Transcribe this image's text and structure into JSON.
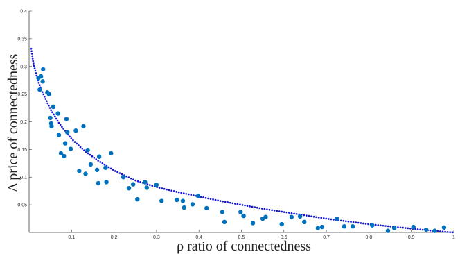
{
  "chart_data": {
    "type": "scatter",
    "xlabel": "ρ ratio of connectedness",
    "ylabel": "Δ price of connectedness",
    "xlim": [
      0,
      1
    ],
    "ylim": [
      0,
      0.4
    ],
    "xticks": [
      0.1,
      0.2,
      0.3,
      0.4,
      0.5,
      0.6,
      0.7,
      0.8,
      0.9,
      1
    ],
    "yticks": [
      0.05,
      0.1,
      0.15,
      0.2,
      0.25,
      0.3,
      0.35,
      0.4
    ],
    "grid": false,
    "series": [
      {
        "kind": "points",
        "color": "#0072bd",
        "points": [
          [
            0.022,
            0.279
          ],
          [
            0.025,
            0.258
          ],
          [
            0.028,
            0.282
          ],
          [
            0.032,
            0.273
          ],
          [
            0.033,
            0.295
          ],
          [
            0.043,
            0.253
          ],
          [
            0.047,
            0.25
          ],
          [
            0.05,
            0.207
          ],
          [
            0.052,
            0.197
          ],
          [
            0.053,
            0.192
          ],
          [
            0.057,
            0.227
          ],
          [
            0.068,
            0.215
          ],
          [
            0.07,
            0.176
          ],
          [
            0.075,
            0.143
          ],
          [
            0.082,
            0.138
          ],
          [
            0.085,
            0.161
          ],
          [
            0.088,
            0.205
          ],
          [
            0.09,
            0.181
          ],
          [
            0.098,
            0.151
          ],
          [
            0.11,
            0.184
          ],
          [
            0.118,
            0.111
          ],
          [
            0.128,
            0.192
          ],
          [
            0.133,
            0.106
          ],
          [
            0.138,
            0.149
          ],
          [
            0.145,
            0.123
          ],
          [
            0.16,
            0.113
          ],
          [
            0.163,
            0.089
          ],
          [
            0.165,
            0.137
          ],
          [
            0.18,
            0.117
          ],
          [
            0.182,
            0.091
          ],
          [
            0.193,
            0.143
          ],
          [
            0.222,
            0.1
          ],
          [
            0.235,
            0.08
          ],
          [
            0.245,
            0.087
          ],
          [
            0.255,
            0.06
          ],
          [
            0.273,
            0.091
          ],
          [
            0.277,
            0.081
          ],
          [
            0.3,
            0.086
          ],
          [
            0.312,
            0.057
          ],
          [
            0.348,
            0.059
          ],
          [
            0.362,
            0.057
          ],
          [
            0.365,
            0.045
          ],
          [
            0.385,
            0.051
          ],
          [
            0.398,
            0.066
          ],
          [
            0.418,
            0.044
          ],
          [
            0.455,
            0.037
          ],
          [
            0.46,
            0.019
          ],
          [
            0.498,
            0.037
          ],
          [
            0.505,
            0.03
          ],
          [
            0.527,
            0.017
          ],
          [
            0.55,
            0.025
          ],
          [
            0.557,
            0.028
          ],
          [
            0.595,
            0.015
          ],
          [
            0.618,
            0.028
          ],
          [
            0.638,
            0.029
          ],
          [
            0.648,
            0.019
          ],
          [
            0.68,
            0.008
          ],
          [
            0.69,
            0.01
          ],
          [
            0.725,
            0.025
          ],
          [
            0.742,
            0.011
          ],
          [
            0.762,
            0.011
          ],
          [
            0.808,
            0.013
          ],
          [
            0.845,
            0.003
          ],
          [
            0.86,
            0.008
          ],
          [
            0.905,
            0.01
          ],
          [
            0.935,
            0.005
          ],
          [
            0.955,
            0.003
          ],
          [
            0.977,
            0.009
          ]
        ]
      },
      {
        "kind": "dotted-fit",
        "color": "#1515d6",
        "x": [
          0.005,
          0.01,
          0.02,
          0.03,
          0.05,
          0.07,
          0.1,
          0.13,
          0.16,
          0.2,
          0.25,
          0.3,
          0.35,
          0.4,
          0.45,
          0.5,
          0.55,
          0.6,
          0.65,
          0.7,
          0.75,
          0.8,
          0.85,
          0.9,
          0.95,
          1.0
        ],
        "y": [
          0.332,
          0.306,
          0.276,
          0.256,
          0.223,
          0.198,
          0.169,
          0.148,
          0.131,
          0.112,
          0.094,
          0.082,
          0.073,
          0.065,
          0.057,
          0.05,
          0.043,
          0.037,
          0.031,
          0.025,
          0.02,
          0.015,
          0.011,
          0.007,
          0.003,
          0.0
        ]
      }
    ]
  }
}
